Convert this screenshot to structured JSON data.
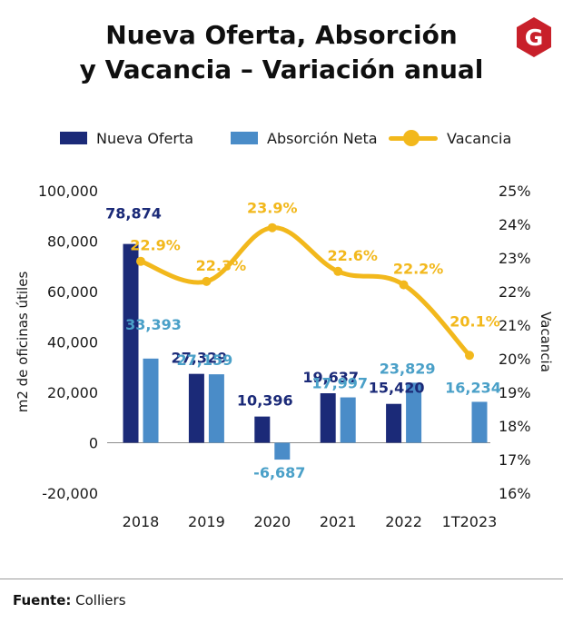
{
  "title_line1": "Nueva Oferta, Absorción",
  "title_line2": "y Vacancia – Variación anual",
  "logo_letter": "G",
  "source_label": "Fuente:",
  "source_value": "Colliers",
  "colors": {
    "nueva": "#1b2a78",
    "absorcion": "#4a8cc8",
    "vacancia": "#f2b81c",
    "nueva_label": "#1b2a78",
    "absorcion_label": "#4aa0c8",
    "logo": "#c8202a"
  },
  "chart_data": {
    "type": "bar",
    "categories": [
      "2018",
      "2019",
      "2020",
      "2021",
      "2022",
      "1T2023"
    ],
    "series": [
      {
        "name": "Nueva Oferta",
        "values": [
          78874,
          27329,
          10396,
          19637,
          15420,
          null
        ],
        "labels": [
          "78,874",
          "27,329",
          "10,396",
          "19,637",
          "15,420",
          ""
        ]
      },
      {
        "name": "Absorción Neta",
        "values": [
          33393,
          27159,
          -6687,
          17997,
          23829,
          16234
        ],
        "labels": [
          "33,393",
          "27,159",
          "-6,687",
          "17,997",
          "23,829",
          "16,234"
        ]
      },
      {
        "name": "Vacancia",
        "type": "line",
        "axis": "right",
        "values": [
          22.9,
          22.3,
          23.9,
          22.6,
          22.2,
          20.1
        ],
        "labels": [
          "22.9%",
          "22.3%",
          "23.9%",
          "22.6%",
          "22.2%",
          "20.1%"
        ]
      }
    ],
    "ylabel": "m2 de oficinas útiles",
    "y2label": "Vacancia",
    "ylim": [
      -20000,
      100000
    ],
    "y2lim": [
      16,
      25
    ],
    "y_ticks": [
      100000,
      80000,
      60000,
      40000,
      20000,
      0,
      -20000
    ],
    "y_tick_labels": [
      "100,000",
      "80,000",
      "60,000",
      "40,000",
      "20,000",
      "0",
      "-20,000"
    ],
    "y2_ticks": [
      25,
      24,
      23,
      22,
      21,
      20,
      19,
      18,
      17,
      16
    ],
    "y2_tick_labels": [
      "25%",
      "24%",
      "23%",
      "22%",
      "21%",
      "20%",
      "19%",
      "18%",
      "17%",
      "16%"
    ],
    "grid": false,
    "legend_position": "top"
  }
}
